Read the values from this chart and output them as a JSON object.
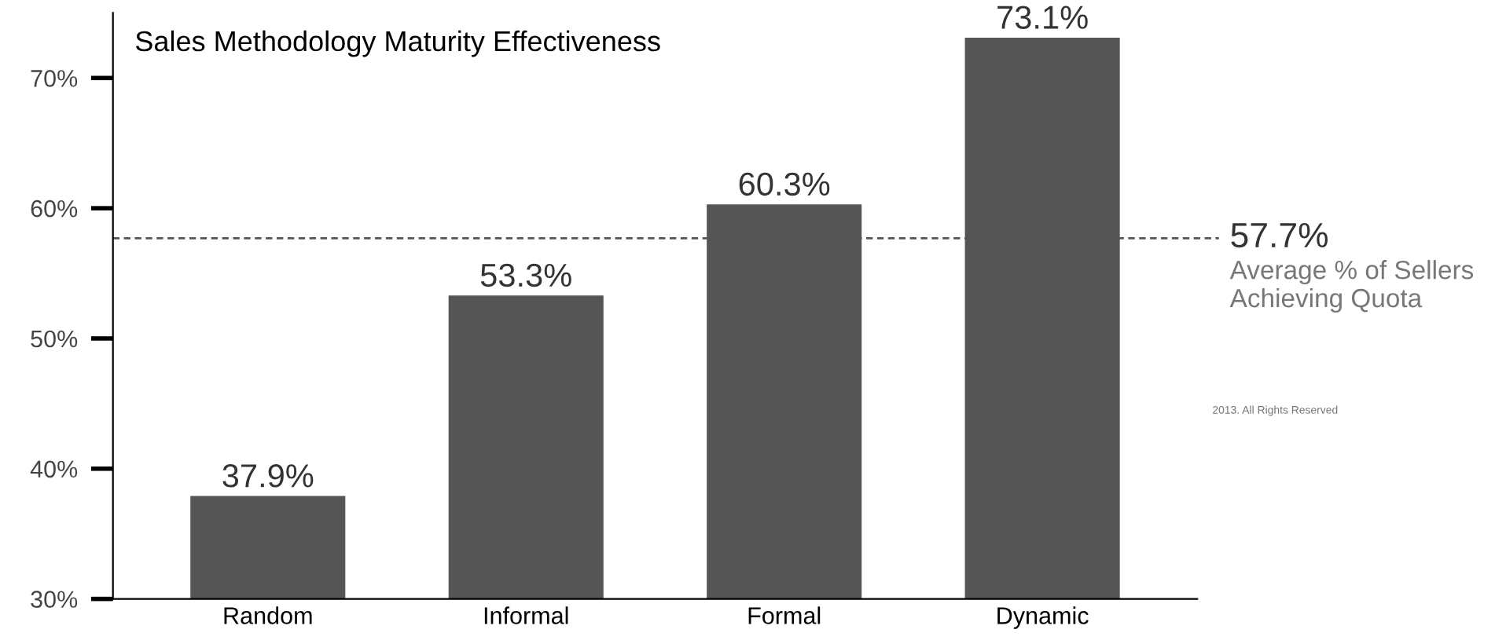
{
  "chart_data": {
    "type": "bar",
    "title": "Sales Methodology Maturity Effectiveness",
    "categories": [
      "Random",
      "Informal",
      "Formal",
      "Dynamic"
    ],
    "values": [
      37.9,
      53.3,
      60.3,
      73.1
    ],
    "value_labels": [
      "37.9%",
      "53.3%",
      "60.3%",
      "73.1%"
    ],
    "color": "#555555",
    "ylim": [
      30,
      75
    ],
    "yticks": [
      {
        "value": 30,
        "label": "30%"
      },
      {
        "value": 40,
        "label": "40%"
      },
      {
        "value": 50,
        "label": "50%"
      },
      {
        "value": 60,
        "label": "60%"
      },
      {
        "value": 70,
        "label": "70%"
      }
    ],
    "ref_lines": [
      {
        "axis": "y",
        "value": 57.7,
        "label": "Average % of Sellers Achieving Quota",
        "color": "#555555",
        "line_style": "dashed"
      }
    ],
    "annotations": [
      "57.7%",
      "2013. All Rights Reserved"
    ],
    "grid": false,
    "legend": false
  }
}
